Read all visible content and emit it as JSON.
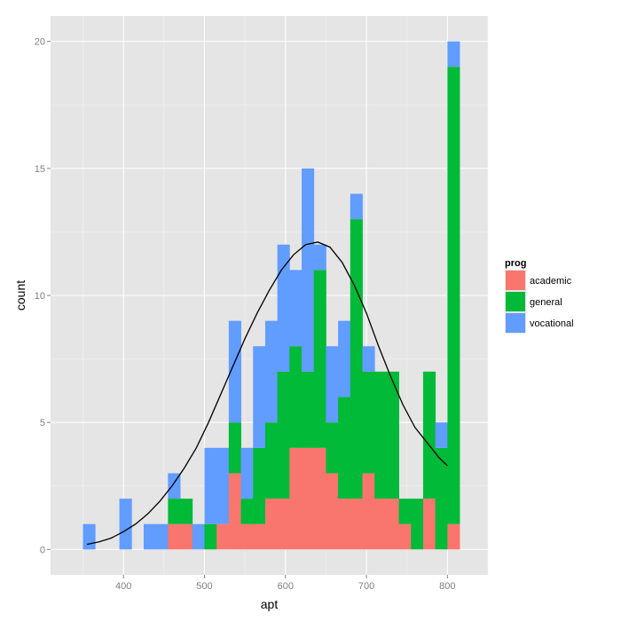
{
  "chart_data": {
    "type": "bar",
    "stacked": true,
    "xlabel": "apt",
    "ylabel": "count",
    "xlim": [
      310,
      850
    ],
    "ylim": [
      -1,
      21
    ],
    "x_ticks": [
      400,
      500,
      600,
      700,
      800
    ],
    "y_ticks": [
      0,
      5,
      10,
      15,
      20
    ],
    "grid": true,
    "bin_width": 15,
    "bin_starts": [
      350,
      365,
      380,
      395,
      410,
      425,
      440,
      455,
      470,
      485,
      500,
      515,
      530,
      545,
      560,
      575,
      590,
      605,
      620,
      635,
      650,
      665,
      680,
      695,
      710,
      725,
      740,
      755,
      770,
      785,
      800
    ],
    "series": [
      {
        "name": "academic",
        "color": "#F8766D",
        "values": [
          0,
          0,
          0,
          0,
          0,
          0,
          0,
          1,
          1,
          0,
          0,
          1,
          3,
          1,
          1,
          2,
          2,
          4,
          4,
          4,
          3,
          2,
          2,
          3,
          2,
          2,
          1,
          0,
          2,
          0,
          1
        ]
      },
      {
        "name": "general",
        "color": "#00BA38",
        "values": [
          0,
          0,
          0,
          0,
          0,
          0,
          0,
          1,
          1,
          0,
          1,
          0,
          2,
          1,
          3,
          3,
          5,
          4,
          3,
          7,
          2,
          4,
          11,
          4,
          5,
          5,
          1,
          2,
          5,
          4,
          18
        ]
      },
      {
        "name": "vocational",
        "color": "#619CFF",
        "values": [
          1,
          0,
          0,
          2,
          0,
          1,
          1,
          1,
          0,
          1,
          3,
          3,
          4,
          2,
          4,
          4,
          5,
          3,
          8,
          1,
          3,
          3,
          1,
          1,
          0,
          0,
          0,
          0,
          0,
          1,
          1
        ]
      }
    ],
    "density_curve": {
      "x": [
        355,
        370,
        385,
        400,
        415,
        430,
        445,
        460,
        475,
        490,
        505,
        520,
        535,
        550,
        565,
        580,
        595,
        610,
        625,
        640,
        655,
        670,
        685,
        700,
        715,
        730,
        745,
        760,
        775,
        790,
        800
      ],
      "y": [
        0.2,
        0.3,
        0.45,
        0.7,
        1.0,
        1.4,
        1.9,
        2.5,
        3.2,
        4.0,
        5.0,
        6.1,
        7.2,
        8.3,
        9.3,
        10.2,
        11.0,
        11.6,
        12.0,
        12.1,
        11.9,
        11.3,
        10.4,
        9.3,
        8.0,
        6.8,
        5.7,
        4.8,
        4.2,
        3.6,
        3.3
      ]
    },
    "legend": {
      "title": "prog",
      "position": "right",
      "items": [
        "academic",
        "general",
        "vocational"
      ]
    }
  }
}
